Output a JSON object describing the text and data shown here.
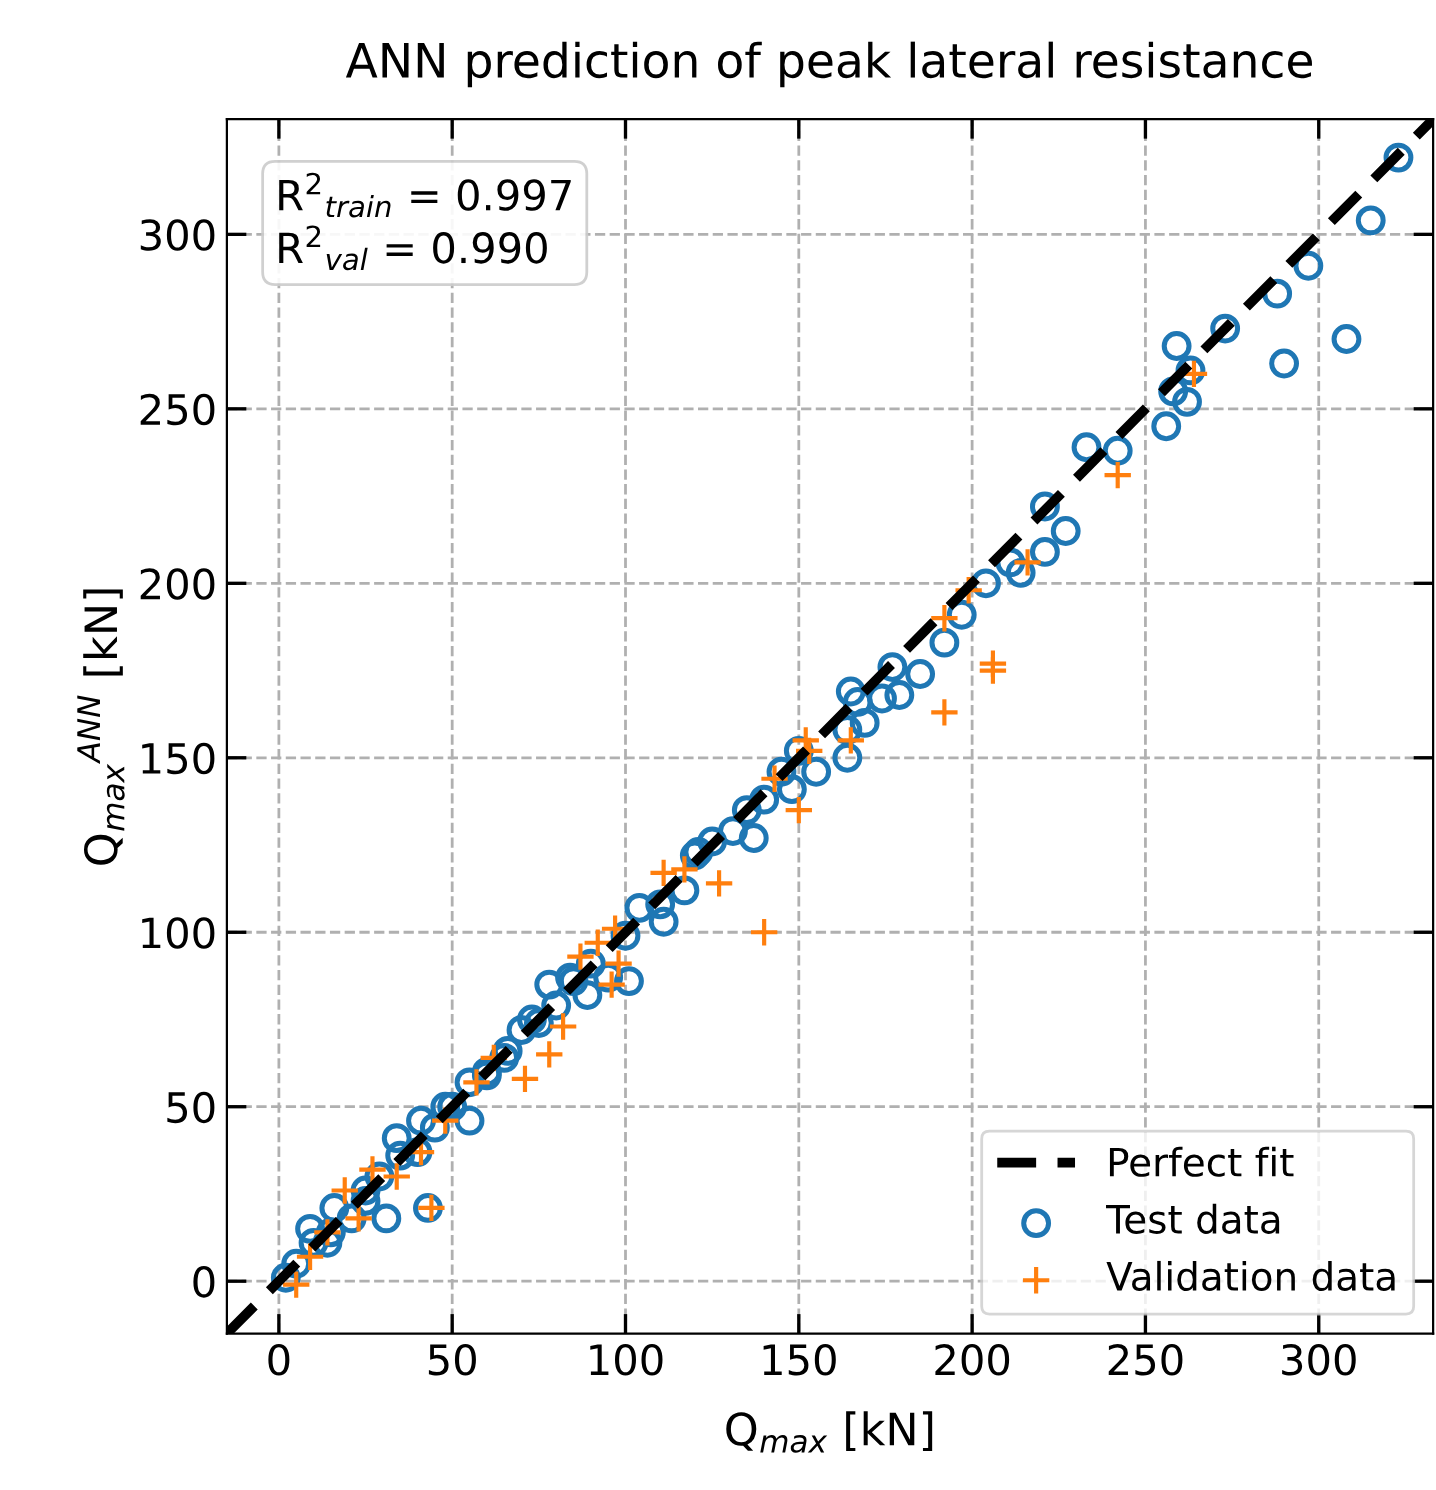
{
  "chart_data": {
    "type": "scatter",
    "title": "ANN prediction of peak lateral resistance",
    "xlabel": "Q$_{max}$ [kN]",
    "ylabel": "Q$_{max}$$^{ANN}$ [kN]",
    "annotations": [
      "R$^{2}$$_{train}$ = 0.997",
      "R$^{2}$$_{val}$ = 0.990"
    ],
    "xlim": [
      -15,
      333
    ],
    "ylim": [
      -15,
      333
    ],
    "xticks": [
      0,
      50,
      100,
      150,
      200,
      250,
      300
    ],
    "yticks": [
      0,
      50,
      100,
      150,
      200,
      250,
      300
    ],
    "grid": true,
    "legend": "bottom right",
    "series": [
      {
        "name": "Perfect fit",
        "type": "line",
        "color": "#000000",
        "line_style": "dashed",
        "marker": "none",
        "x": [
          -15,
          333
        ],
        "values": [
          -15,
          333
        ]
      },
      {
        "name": "Test data",
        "color": "#1f77b4",
        "marker": "circle",
        "x": [
          323,
          315,
          297,
          288,
          308,
          290,
          273,
          259,
          258,
          262,
          256,
          263,
          242,
          233,
          227,
          221,
          221,
          214,
          211,
          204,
          197,
          192,
          185,
          179,
          174,
          167,
          169,
          164,
          177,
          165,
          164,
          155,
          150,
          148,
          135,
          131,
          137,
          121,
          117,
          111,
          104,
          101,
          95,
          89,
          78,
          84,
          73,
          66,
          55,
          60,
          48,
          41,
          40,
          34,
          31,
          29,
          25,
          21,
          16,
          14,
          9,
          5,
          2,
          43,
          70,
          80,
          90,
          100,
          110,
          125,
          140,
          145,
          120,
          65,
          55,
          45,
          35,
          25,
          15,
          10,
          50,
          60,
          75,
          85
        ],
        "values": [
          322,
          304,
          291,
          283,
          270,
          263,
          273,
          268,
          255,
          252,
          245,
          261,
          238,
          239,
          215,
          222,
          209,
          203,
          206,
          200,
          191,
          183,
          174,
          168,
          167,
          166,
          160,
          158,
          176,
          169,
          150,
          146,
          152,
          141,
          135,
          129,
          127,
          123,
          112,
          103,
          107,
          86,
          87,
          82,
          85,
          87,
          75,
          66,
          46,
          59,
          50,
          46,
          37,
          41,
          18,
          30,
          23,
          18,
          21,
          11,
          15,
          5,
          1,
          21,
          72,
          79,
          91,
          99,
          108,
          126,
          138,
          146,
          122,
          64,
          57,
          44,
          36,
          26,
          14,
          11,
          50,
          60,
          74,
          86
        ]
      },
      {
        "name": "Validation data",
        "color": "#ff7f0e",
        "marker": "cross",
        "x": [
          264,
          242,
          216,
          199,
          192,
          206,
          192,
          165,
          153,
          206,
          150,
          143,
          152,
          127,
          117,
          111,
          140,
          97,
          92,
          87,
          96,
          98,
          82,
          78,
          71,
          62,
          57,
          48,
          41,
          34,
          27,
          19,
          23,
          14,
          9,
          5,
          44
        ],
        "values": [
          260,
          231,
          206,
          198,
          190,
          175,
          163,
          155,
          152,
          177,
          135,
          144,
          155,
          114,
          118,
          117,
          100,
          101,
          97,
          93,
          85,
          91,
          73,
          65,
          58,
          64,
          57,
          46,
          37,
          30,
          32,
          26,
          18,
          14,
          7,
          -1,
          21
        ]
      }
    ]
  }
}
